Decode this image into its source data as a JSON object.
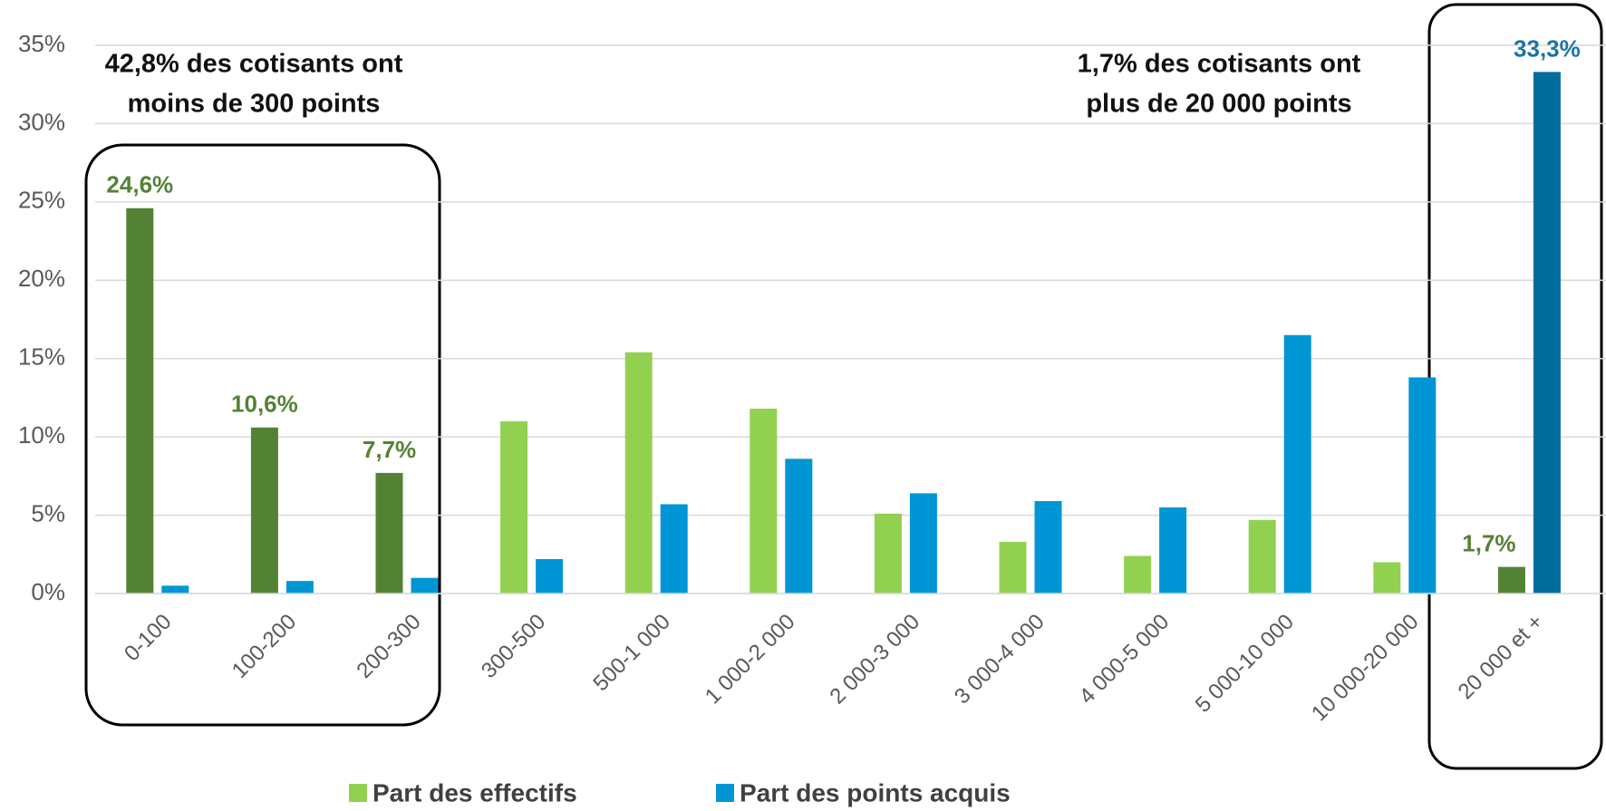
{
  "chart_data": {
    "type": "bar",
    "categories": [
      "0-100",
      "100-200",
      "200-300",
      "300-500",
      "500-1 000",
      "1 000-2 000",
      "2 000-3 000",
      "3 000-4 000",
      "4 000-5 000",
      "5 000-10 000",
      "10 000-20 000",
      "20 000 et +"
    ],
    "series": [
      {
        "name": "Part des effectifs",
        "color": "#92d050",
        "colors": [
          "#548235",
          "#548235",
          "#548235",
          "#92d050",
          "#92d050",
          "#92d050",
          "#92d050",
          "#92d050",
          "#92d050",
          "#92d050",
          "#92d050",
          "#548235"
        ],
        "values": [
          24.6,
          10.6,
          7.7,
          11.0,
          15.4,
          11.8,
          5.1,
          3.3,
          2.4,
          4.7,
          2.0,
          1.7
        ],
        "value_labels": [
          "24,6%",
          "10,6%",
          "7,7%",
          null,
          null,
          null,
          null,
          null,
          null,
          null,
          null,
          "1,7%"
        ],
        "label_color": "#548235"
      },
      {
        "name": "Part des points acquis",
        "color": "#0096d6",
        "colors": [
          "#0096d6",
          "#0096d6",
          "#0096d6",
          "#0096d6",
          "#0096d6",
          "#0096d6",
          "#0096d6",
          "#0096d6",
          "#0096d6",
          "#0096d6",
          "#0096d6",
          "#006d9c"
        ],
        "values": [
          0.5,
          0.8,
          1.0,
          2.2,
          5.7,
          8.6,
          6.4,
          5.9,
          5.5,
          16.5,
          13.8,
          33.3
        ],
        "value_labels": [
          null,
          null,
          null,
          null,
          null,
          null,
          null,
          null,
          null,
          null,
          null,
          "33,3%"
        ],
        "label_color": "#1a75a8"
      }
    ],
    "ylim": [
      0,
      35
    ],
    "yticks": [
      {
        "value": 0,
        "label": "0%"
      },
      {
        "value": 5,
        "label": "5%"
      },
      {
        "value": 10,
        "label": "10%"
      },
      {
        "value": 15,
        "label": "15%"
      },
      {
        "value": 20,
        "label": "20%"
      },
      {
        "value": 25,
        "label": "25%"
      },
      {
        "value": 30,
        "label": "30%"
      },
      {
        "value": 35,
        "label": "35%"
      }
    ],
    "grid": true,
    "annotations": [
      {
        "lines": [
          "42,8% des cotisants ont",
          "moins de 300 points"
        ]
      },
      {
        "lines": [
          "1,7% des cotisants ont",
          "plus de 20 000 points"
        ]
      }
    ],
    "legend": "bottom"
  }
}
